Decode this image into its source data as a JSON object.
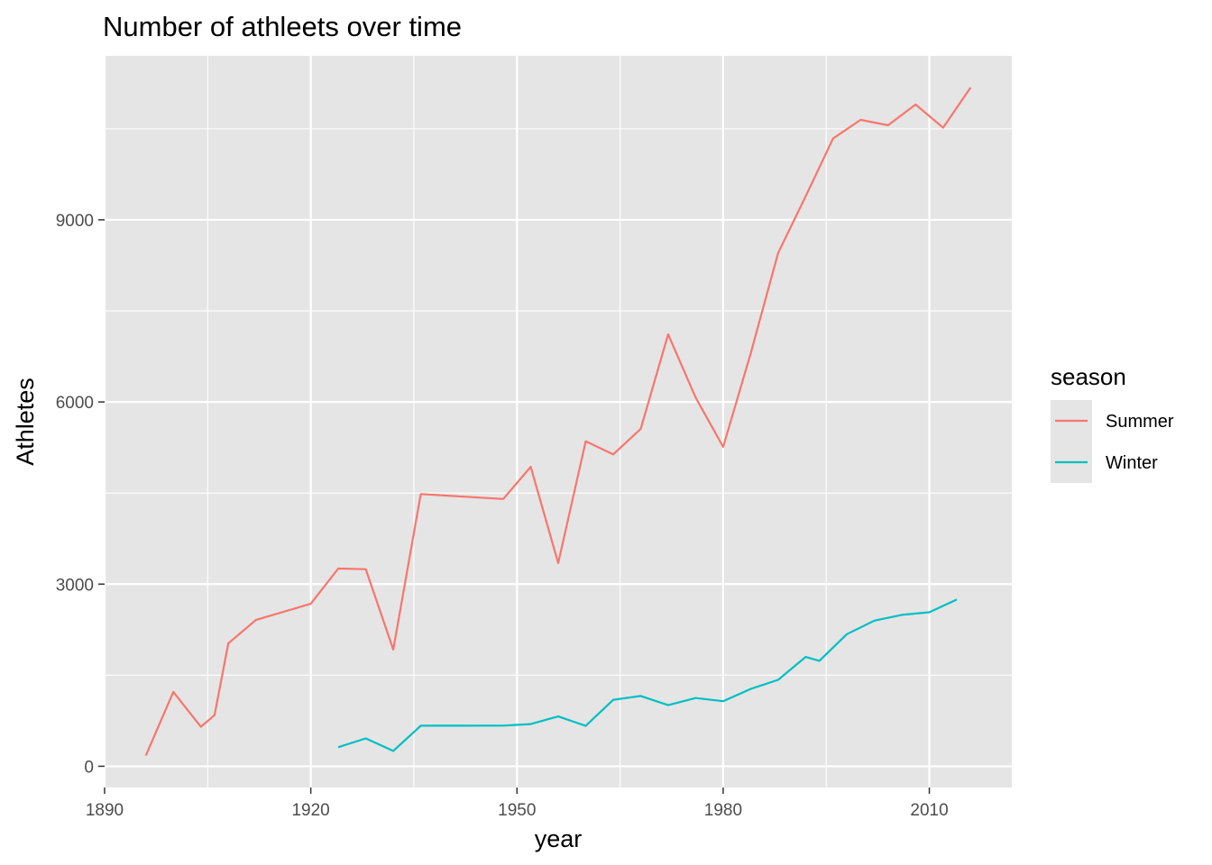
{
  "chart_data": {
    "type": "line",
    "title": "Number of athleets over time",
    "xlabel": "year",
    "ylabel": "Athletes",
    "xlim": [
      1890,
      2022
    ],
    "ylim": [
      -350,
      11700
    ],
    "x_ticks": [
      1890,
      1920,
      1950,
      1980,
      2010
    ],
    "y_ticks": [
      0,
      3000,
      6000,
      9000
    ],
    "x_tick_labels": [
      "1890",
      "1920",
      "1950",
      "1980",
      "2010"
    ],
    "y_tick_labels": [
      "0",
      "3000",
      "6000",
      "9000"
    ],
    "grid": true,
    "panel_background": "#e5e5e5",
    "grid_color": "#ffffff",
    "legend": {
      "title": "season",
      "placement": "right",
      "entries": [
        "Summer",
        "Winter"
      ]
    },
    "series": [
      {
        "name": "Summer",
        "color": "#f8766d",
        "x": [
          1896,
          1900,
          1904,
          1906,
          1908,
          1912,
          1920,
          1924,
          1928,
          1932,
          1936,
          1948,
          1952,
          1956,
          1960,
          1964,
          1968,
          1972,
          1976,
          1980,
          1984,
          1988,
          1992,
          1996,
          2000,
          2004,
          2008,
          2012,
          2016
        ],
        "y": [
          176,
          1224,
          650,
          841,
          2024,
          2409,
          2676,
          3256,
          3246,
          1922,
          4484,
          4402,
          4932,
          3347,
          5352,
          5137,
          5558,
          7113,
          6073,
          5259,
          6797,
          8454,
          9386,
          10339,
          10647,
          10557,
          10899,
          10517,
          11179
        ]
      },
      {
        "name": "Winter",
        "color": "#00bfc4",
        "x": [
          1924,
          1928,
          1932,
          1936,
          1948,
          1952,
          1956,
          1960,
          1964,
          1968,
          1972,
          1976,
          1980,
          1984,
          1988,
          1992,
          1994,
          1998,
          2002,
          2006,
          2010,
          2014
        ],
        "y": [
          313,
          459,
          252,
          668,
          669,
          694,
          821,
          665,
          1094,
          1158,
          1006,
          1123,
          1072,
          1274,
          1423,
          1801,
          1737,
          2176,
          2399,
          2494,
          2536,
          2745
        ]
      }
    ]
  }
}
